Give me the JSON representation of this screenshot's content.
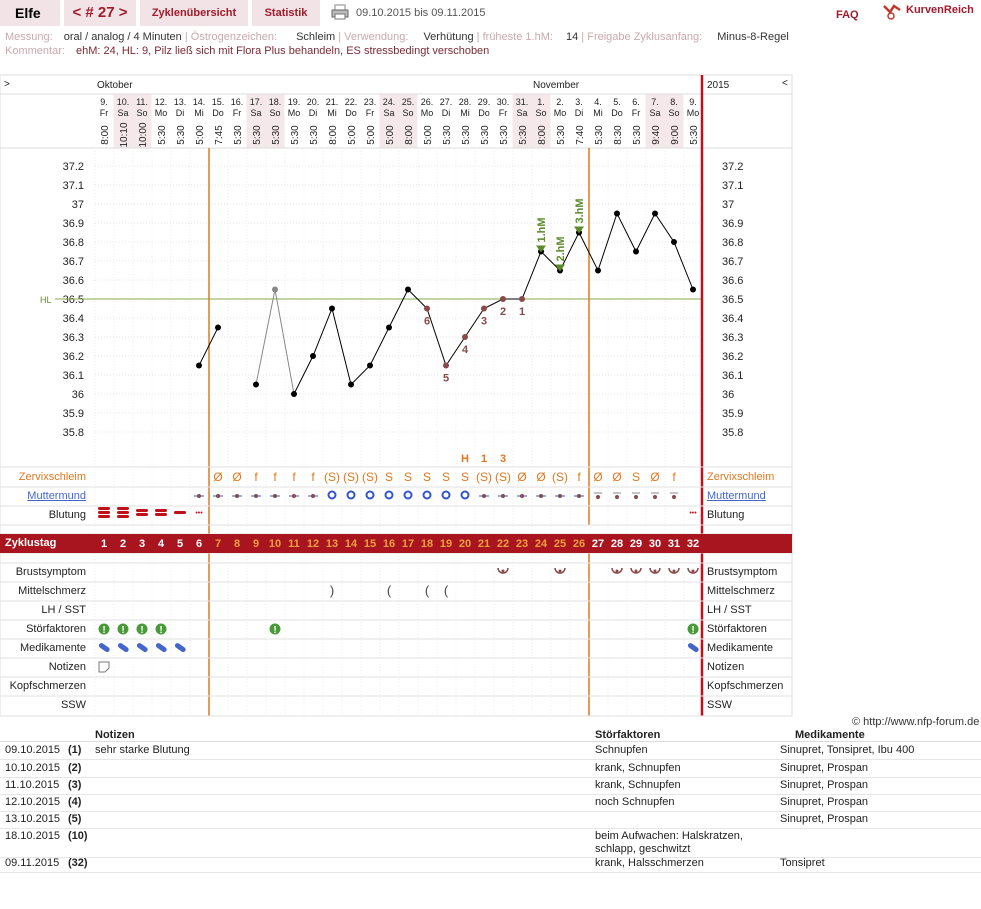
{
  "header": {
    "user": "Elfe",
    "cycle_nav": "< # 27 >",
    "tab_overview": "Zyklenübersicht",
    "tab_stats": "Statistik",
    "date_range": "09.10.2015 bis 09.11.2015",
    "faq": "FAQ",
    "brand": "KurvenReich"
  },
  "info": {
    "messung_label": "Messung:",
    "messung": "oral / analog / 4 Minuten",
    "oestrogen_label": "Östrogenzeichen:",
    "oestrogen": "Schleim",
    "verwendung_label": "Verwendung:",
    "verwendung": "Verhütung",
    "frueheste_label": "früheste 1.hM:",
    "frueheste": "14",
    "freigabe_label": "Freigabe Zyklusanfang:",
    "freigabe": "Minus-8-Regel",
    "kommentar_label": "Kommentar:",
    "kommentar": "ehM: 24, HL: 9, Pilz ließ sich mit Flora Plus behandeln, ES stressbedingt verschoben"
  },
  "months": {
    "left": "Oktober",
    "right": "November",
    "year": "2015",
    "nav_left": ">",
    "nav_right": "<"
  },
  "days": [
    {
      "d": "9.",
      "wd": "Fr",
      "t": "8:00"
    },
    {
      "d": "10.",
      "wd": "Sa",
      "t": "10:10"
    },
    {
      "d": "11.",
      "wd": "So",
      "t": "10:00"
    },
    {
      "d": "12.",
      "wd": "Mo",
      "t": "5:30"
    },
    {
      "d": "13.",
      "wd": "Di",
      "t": "5:30"
    },
    {
      "d": "14.",
      "wd": "Mi",
      "t": "5:00"
    },
    {
      "d": "15.",
      "wd": "Do",
      "t": "7:45"
    },
    {
      "d": "16.",
      "wd": "Fr",
      "t": "5:30"
    },
    {
      "d": "17.",
      "wd": "Sa",
      "t": "5:30"
    },
    {
      "d": "18.",
      "wd": "So",
      "t": "5:30"
    },
    {
      "d": "19.",
      "wd": "Mo",
      "t": "5:30"
    },
    {
      "d": "20.",
      "wd": "Di",
      "t": "5:30"
    },
    {
      "d": "21.",
      "wd": "Mi",
      "t": "8:00"
    },
    {
      "d": "22.",
      "wd": "Do",
      "t": "5:00"
    },
    {
      "d": "23.",
      "wd": "Fr",
      "t": "5:00"
    },
    {
      "d": "24.",
      "wd": "Sa",
      "t": "5:00"
    },
    {
      "d": "25.",
      "wd": "So",
      "t": "8:00"
    },
    {
      "d": "26.",
      "wd": "Mo",
      "t": "5:00"
    },
    {
      "d": "27.",
      "wd": "Di",
      "t": "5:30"
    },
    {
      "d": "28.",
      "wd": "Mi",
      "t": "5:30"
    },
    {
      "d": "29.",
      "wd": "Do",
      "t": "5:30"
    },
    {
      "d": "30.",
      "wd": "Fr",
      "t": "5:30"
    },
    {
      "d": "31.",
      "wd": "Sa",
      "t": "5:30"
    },
    {
      "d": "1.",
      "wd": "So",
      "t": "8:00"
    },
    {
      "d": "2.",
      "wd": "Mo",
      "t": "5:30"
    },
    {
      "d": "3.",
      "wd": "Di",
      "t": "7:40"
    },
    {
      "d": "4.",
      "wd": "Mi",
      "t": "5:30"
    },
    {
      "d": "5.",
      "wd": "Do",
      "t": "8:30"
    },
    {
      "d": "6.",
      "wd": "Fr",
      "t": "5:30"
    },
    {
      "d": "7.",
      "wd": "Sa",
      "t": "9:40"
    },
    {
      "d": "8.",
      "wd": "So",
      "t": "9:00"
    },
    {
      "d": "9.",
      "wd": "Mo",
      "t": "5:30"
    }
  ],
  "chart_data": {
    "type": "line",
    "ylabel": "",
    "ylim": [
      35.8,
      37.2
    ],
    "yticks": [
      "37.2",
      "37.1",
      "37",
      "36.9",
      "36.8",
      "36.7",
      "36.6",
      "36.5",
      "36.4",
      "36.3",
      "36.2",
      "36.1",
      "36",
      "35.9",
      "35.8"
    ],
    "hl_label": "HL",
    "hl_value": 36.5,
    "cycle_days": [
      1,
      2,
      3,
      4,
      5,
      6,
      7,
      8,
      9,
      10,
      11,
      12,
      13,
      14,
      15,
      16,
      17,
      18,
      19,
      20,
      21,
      22,
      23,
      24,
      25,
      26,
      27,
      28,
      29,
      30,
      31,
      32
    ],
    "temperatures": [
      null,
      null,
      null,
      null,
      null,
      36.15,
      36.35,
      null,
      36.05,
      36.55,
      36.0,
      36.2,
      36.45,
      36.05,
      36.15,
      36.35,
      36.55,
      36.45,
      36.15,
      36.3,
      36.45,
      36.5,
      36.5,
      36.75,
      36.65,
      36.85,
      36.65,
      36.95,
      36.75,
      36.95,
      36.8,
      36.55
    ],
    "excluded_day": 10,
    "lower_count": [
      {
        "day": 18,
        "n": "6"
      },
      {
        "day": 19,
        "n": "5"
      },
      {
        "day": 20,
        "n": "4"
      },
      {
        "day": 21,
        "n": "3"
      },
      {
        "day": 22,
        "n": "2"
      },
      {
        "day": 23,
        "n": "1"
      }
    ],
    "higher_marks": [
      {
        "day": 24,
        "label": "1.hM"
      },
      {
        "day": 25,
        "label": "2.hM"
      },
      {
        "day": 26,
        "label": "3.hM"
      }
    ],
    "markers": {
      "cycle_start_day": 6.5,
      "evaluation_day": 26.5
    }
  },
  "rows": {
    "zervix": "Zervixschleim",
    "muttermund": "Muttermund",
    "blutung": "Blutung",
    "zyklustag": "Zyklustag",
    "brust": "Brustsymptom",
    "mittel": "Mittelschmerz",
    "lh": "LH / SST",
    "stoer": "Störfaktoren",
    "medi": "Medikamente",
    "notizen": "Notizen",
    "kopf": "Kopfschmerzen",
    "ssw": "SSW"
  },
  "peak": {
    "H_day": 20,
    "one_day": 21,
    "three_day": 22,
    "H": "H",
    "one": "1",
    "three": "3"
  },
  "zervix_symbols": [
    "",
    "",
    "",
    "",
    "",
    "",
    "Ø",
    "Ø",
    "f",
    "f",
    "f",
    "f",
    "(S)",
    "(S)",
    "(S)",
    "S",
    "S",
    "S",
    "S",
    "S",
    "(S)",
    "(S)",
    "Ø",
    "Ø",
    "(S)",
    "f",
    "Ø",
    "Ø",
    "S",
    "Ø",
    "f",
    ""
  ],
  "brust_days": [
    22,
    25,
    28,
    29,
    30,
    31,
    32
  ],
  "mittel_days": [
    13,
    16,
    18,
    19
  ],
  "stoer_days": [
    1,
    2,
    3,
    4,
    10,
    32
  ],
  "medi_days": [
    1,
    2,
    3,
    4,
    5,
    32
  ],
  "notiz_days": [
    1
  ],
  "copyright": "© http://www.nfp-forum.de",
  "table": {
    "headers": {
      "notizen": "Notizen",
      "stoer": "Störfaktoren",
      "medi": "Medikamente"
    },
    "rows": [
      {
        "date": "09.10.2015",
        "day": "(1)",
        "note": "sehr starke Blutung",
        "stoer": "Schnupfen",
        "medi": "Sinupret, Tonsipret, Ibu 400"
      },
      {
        "date": "10.10.2015",
        "day": "(2)",
        "note": "",
        "stoer": "krank, Schnupfen",
        "medi": "Sinupret, Prospan"
      },
      {
        "date": "11.10.2015",
        "day": "(3)",
        "note": "",
        "stoer": "krank, Schnupfen",
        "medi": "Sinupret, Prospan"
      },
      {
        "date": "12.10.2015",
        "day": "(4)",
        "note": "",
        "stoer": "noch Schnupfen",
        "medi": "Sinupret, Prospan"
      },
      {
        "date": "13.10.2015",
        "day": "(5)",
        "note": "",
        "stoer": "",
        "medi": "Sinupret, Prospan"
      },
      {
        "date": "18.10.2015",
        "day": "(10)",
        "note": "",
        "stoer": "beim Aufwachen: Halskratzen, schlapp, geschwitzt",
        "medi": ""
      },
      {
        "date": "09.11.2015",
        "day": "(32)",
        "note": "",
        "stoer": "krank, Halsschmerzen",
        "medi": "Tonsipret"
      }
    ]
  }
}
